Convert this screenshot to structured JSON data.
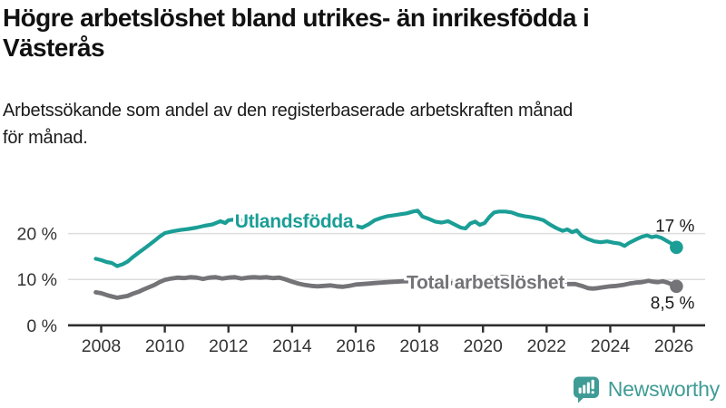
{
  "header": {
    "title_lines": [
      "Högre arbetslöshet bland utrikes- än inrikesfödda i",
      "Västerås"
    ],
    "subtitle_lines": [
      "Arbetssökande som andel av den registerbaserade arbetskraften månad",
      "för månad."
    ]
  },
  "footer": {
    "brand": "Newsworthy",
    "brand_color": "#3f9b95"
  },
  "colors": {
    "accent_teal": "#1a9e96",
    "series_gray": "#747478",
    "axis": "#2e2e2e",
    "tick_label": "#333333",
    "grid": "#dddddd",
    "value_label": "#1a1a1a"
  },
  "chart_data": {
    "type": "line",
    "x_unit": "decimal_year",
    "grid": "horizontal",
    "legend_position": "inline-labels",
    "xlim": [
      2006.95,
      2027.0
    ],
    "ylim": [
      0,
      26
    ],
    "xticks": [
      2008,
      2010,
      2012,
      2014,
      2016,
      2018,
      2020,
      2022,
      2024,
      2026
    ],
    "yticks": [
      0,
      10,
      20
    ],
    "ytick_suffix": " %",
    "series": [
      {
        "name": "Utlandsfödda",
        "color": "#1a9e96",
        "stroke_width": 4.2,
        "end_label": "17 %",
        "end_value": 17,
        "points": [
          [
            2007.83,
            14.5
          ],
          [
            2008.0,
            14.2
          ],
          [
            2008.17,
            13.8
          ],
          [
            2008.33,
            13.6
          ],
          [
            2008.5,
            12.9
          ],
          [
            2008.67,
            13.3
          ],
          [
            2008.83,
            13.9
          ],
          [
            2009.0,
            14.9
          ],
          [
            2009.17,
            15.8
          ],
          [
            2009.33,
            16.6
          ],
          [
            2009.5,
            17.5
          ],
          [
            2009.67,
            18.4
          ],
          [
            2009.83,
            19.3
          ],
          [
            2010.0,
            20.1
          ],
          [
            2010.25,
            20.5
          ],
          [
            2010.5,
            20.8
          ],
          [
            2010.75,
            21.0
          ],
          [
            2011.0,
            21.3
          ],
          [
            2011.25,
            21.7
          ],
          [
            2011.5,
            22.0
          ],
          [
            2011.75,
            22.7
          ],
          [
            2011.9,
            22.3
          ],
          [
            2012.0,
            22.9
          ],
          [
            2012.25,
            23.1
          ],
          [
            2012.5,
            22.9
          ],
          [
            2012.75,
            22.7
          ],
          [
            2013.0,
            22.5
          ],
          [
            2013.25,
            22.4
          ],
          [
            2013.5,
            22.2
          ],
          [
            2013.75,
            22.1
          ],
          [
            2014.0,
            21.9
          ],
          [
            2014.25,
            22.0
          ],
          [
            2014.5,
            21.8
          ],
          [
            2014.75,
            21.6
          ],
          [
            2015.0,
            21.5
          ],
          [
            2015.25,
            21.4
          ],
          [
            2015.5,
            21.3
          ],
          [
            2015.75,
            21.4
          ],
          [
            2016.0,
            21.7
          ],
          [
            2016.2,
            21.3
          ],
          [
            2016.4,
            22.0
          ],
          [
            2016.6,
            22.9
          ],
          [
            2016.8,
            23.4
          ],
          [
            2017.0,
            23.8
          ],
          [
            2017.2,
            24.0
          ],
          [
            2017.4,
            24.2
          ],
          [
            2017.6,
            24.4
          ],
          [
            2017.8,
            24.8
          ],
          [
            2017.95,
            25.0
          ],
          [
            2018.1,
            23.7
          ],
          [
            2018.3,
            23.2
          ],
          [
            2018.5,
            22.6
          ],
          [
            2018.7,
            22.4
          ],
          [
            2018.9,
            22.7
          ],
          [
            2019.1,
            22.0
          ],
          [
            2019.3,
            21.3
          ],
          [
            2019.45,
            21.1
          ],
          [
            2019.6,
            22.2
          ],
          [
            2019.75,
            22.6
          ],
          [
            2019.9,
            21.9
          ],
          [
            2020.05,
            22.3
          ],
          [
            2020.2,
            23.6
          ],
          [
            2020.35,
            24.6
          ],
          [
            2020.5,
            24.8
          ],
          [
            2020.7,
            24.8
          ],
          [
            2020.9,
            24.6
          ],
          [
            2021.1,
            24.1
          ],
          [
            2021.3,
            23.8
          ],
          [
            2021.5,
            23.6
          ],
          [
            2021.7,
            23.3
          ],
          [
            2021.9,
            22.9
          ],
          [
            2022.1,
            22.0
          ],
          [
            2022.3,
            21.2
          ],
          [
            2022.5,
            20.6
          ],
          [
            2022.65,
            20.9
          ],
          [
            2022.8,
            20.3
          ],
          [
            2022.95,
            20.7
          ],
          [
            2023.1,
            19.5
          ],
          [
            2023.3,
            18.8
          ],
          [
            2023.5,
            18.3
          ],
          [
            2023.7,
            18.1
          ],
          [
            2023.9,
            18.3
          ],
          [
            2024.1,
            18.0
          ],
          [
            2024.3,
            17.8
          ],
          [
            2024.45,
            17.3
          ],
          [
            2024.6,
            18.0
          ],
          [
            2024.8,
            18.7
          ],
          [
            2025.0,
            19.3
          ],
          [
            2025.15,
            19.6
          ],
          [
            2025.3,
            19.2
          ],
          [
            2025.45,
            19.4
          ],
          [
            2025.6,
            19.1
          ],
          [
            2025.75,
            18.5
          ],
          [
            2025.9,
            17.9
          ],
          [
            2026.08,
            17.0
          ]
        ]
      },
      {
        "name": "Total arbetslöshet",
        "color": "#747478",
        "stroke_width": 4.8,
        "end_label": "8,5 %",
        "end_value": 8.5,
        "points": [
          [
            2007.83,
            7.2
          ],
          [
            2008.0,
            7.0
          ],
          [
            2008.17,
            6.6
          ],
          [
            2008.33,
            6.3
          ],
          [
            2008.5,
            6.0
          ],
          [
            2008.67,
            6.2
          ],
          [
            2008.83,
            6.4
          ],
          [
            2009.0,
            6.9
          ],
          [
            2009.17,
            7.3
          ],
          [
            2009.33,
            7.8
          ],
          [
            2009.5,
            8.3
          ],
          [
            2009.67,
            8.8
          ],
          [
            2009.83,
            9.4
          ],
          [
            2010.0,
            9.9
          ],
          [
            2010.2,
            10.2
          ],
          [
            2010.4,
            10.4
          ],
          [
            2010.6,
            10.3
          ],
          [
            2010.8,
            10.5
          ],
          [
            2011.0,
            10.4
          ],
          [
            2011.2,
            10.1
          ],
          [
            2011.4,
            10.4
          ],
          [
            2011.6,
            10.5
          ],
          [
            2011.8,
            10.2
          ],
          [
            2012.0,
            10.4
          ],
          [
            2012.2,
            10.5
          ],
          [
            2012.4,
            10.2
          ],
          [
            2012.6,
            10.4
          ],
          [
            2012.8,
            10.5
          ],
          [
            2013.0,
            10.4
          ],
          [
            2013.2,
            10.5
          ],
          [
            2013.4,
            10.3
          ],
          [
            2013.6,
            10.4
          ],
          [
            2013.8,
            10.0
          ],
          [
            2014.0,
            9.5
          ],
          [
            2014.2,
            9.1
          ],
          [
            2014.4,
            8.8
          ],
          [
            2014.6,
            8.6
          ],
          [
            2014.8,
            8.5
          ],
          [
            2015.0,
            8.6
          ],
          [
            2015.2,
            8.7
          ],
          [
            2015.4,
            8.5
          ],
          [
            2015.6,
            8.4
          ],
          [
            2015.8,
            8.6
          ],
          [
            2016.0,
            8.9
          ],
          [
            2016.2,
            9.0
          ],
          [
            2016.4,
            9.1
          ],
          [
            2016.6,
            9.2
          ],
          [
            2016.8,
            9.3
          ],
          [
            2017.0,
            9.4
          ],
          [
            2017.25,
            9.5
          ],
          [
            2017.5,
            9.6
          ],
          [
            2017.75,
            9.6
          ],
          [
            2018.0,
            9.5
          ],
          [
            2018.25,
            9.4
          ],
          [
            2018.5,
            9.3
          ],
          [
            2018.75,
            9.2
          ],
          [
            2019.0,
            9.2
          ],
          [
            2019.25,
            9.3
          ],
          [
            2019.5,
            9.4
          ],
          [
            2019.75,
            9.6
          ],
          [
            2020.0,
            9.9
          ],
          [
            2020.25,
            10.4
          ],
          [
            2020.5,
            10.6
          ],
          [
            2020.75,
            10.5
          ],
          [
            2021.0,
            10.2
          ],
          [
            2021.25,
            9.9
          ],
          [
            2021.5,
            9.7
          ],
          [
            2021.75,
            9.5
          ],
          [
            2022.0,
            9.3
          ],
          [
            2022.25,
            9.1
          ],
          [
            2022.5,
            9.0
          ],
          [
            2022.75,
            9.0
          ],
          [
            2022.9,
            9.0
          ],
          [
            2023.1,
            8.6
          ],
          [
            2023.3,
            8.1
          ],
          [
            2023.45,
            8.0
          ],
          [
            2023.6,
            8.1
          ],
          [
            2023.8,
            8.3
          ],
          [
            2024.0,
            8.5
          ],
          [
            2024.2,
            8.6
          ],
          [
            2024.4,
            8.8
          ],
          [
            2024.6,
            9.1
          ],
          [
            2024.8,
            9.3
          ],
          [
            2025.0,
            9.4
          ],
          [
            2025.2,
            9.7
          ],
          [
            2025.35,
            9.5
          ],
          [
            2025.5,
            9.4
          ],
          [
            2025.65,
            9.6
          ],
          [
            2025.8,
            9.3
          ],
          [
            2026.08,
            8.5
          ]
        ]
      }
    ]
  }
}
